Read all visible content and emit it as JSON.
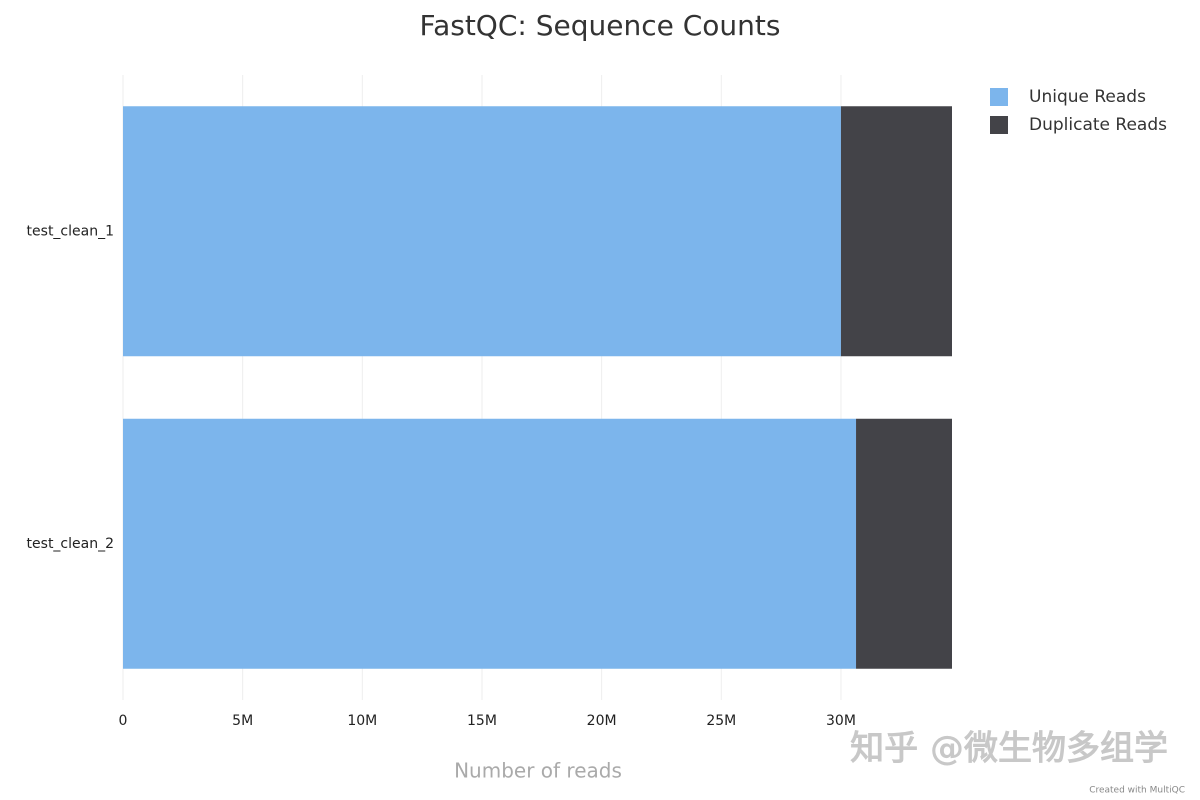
{
  "chart_data": {
    "type": "stacked-barh",
    "title": "FastQC: Sequence Counts",
    "categories": [
      "test_clean_1",
      "test_clean_2"
    ],
    "series": [
      {
        "name": "Unique Reads",
        "color": "#7cb5ec",
        "values": [
          30000000,
          30630000
        ]
      },
      {
        "name": "Duplicate Reads",
        "color": "#434348",
        "values": [
          4640000,
          4010000
        ]
      }
    ],
    "xlabel": "Number of reads",
    "xlim": [
      0,
      34640000
    ],
    "xticks": [
      0,
      {
        "value": 5000000,
        "label": "5M"
      },
      {
        "value": 10000000,
        "label": "10M"
      },
      {
        "value": 15000000,
        "label": "15M"
      },
      {
        "value": 20000000,
        "label": "20M"
      },
      {
        "value": 25000000,
        "label": "25M"
      },
      {
        "value": 30000000,
        "label": "30M"
      }
    ],
    "grid": true,
    "legend": "upper right"
  },
  "credit": "Created with MultiQC",
  "watermark": "知乎 @微生物多组学"
}
